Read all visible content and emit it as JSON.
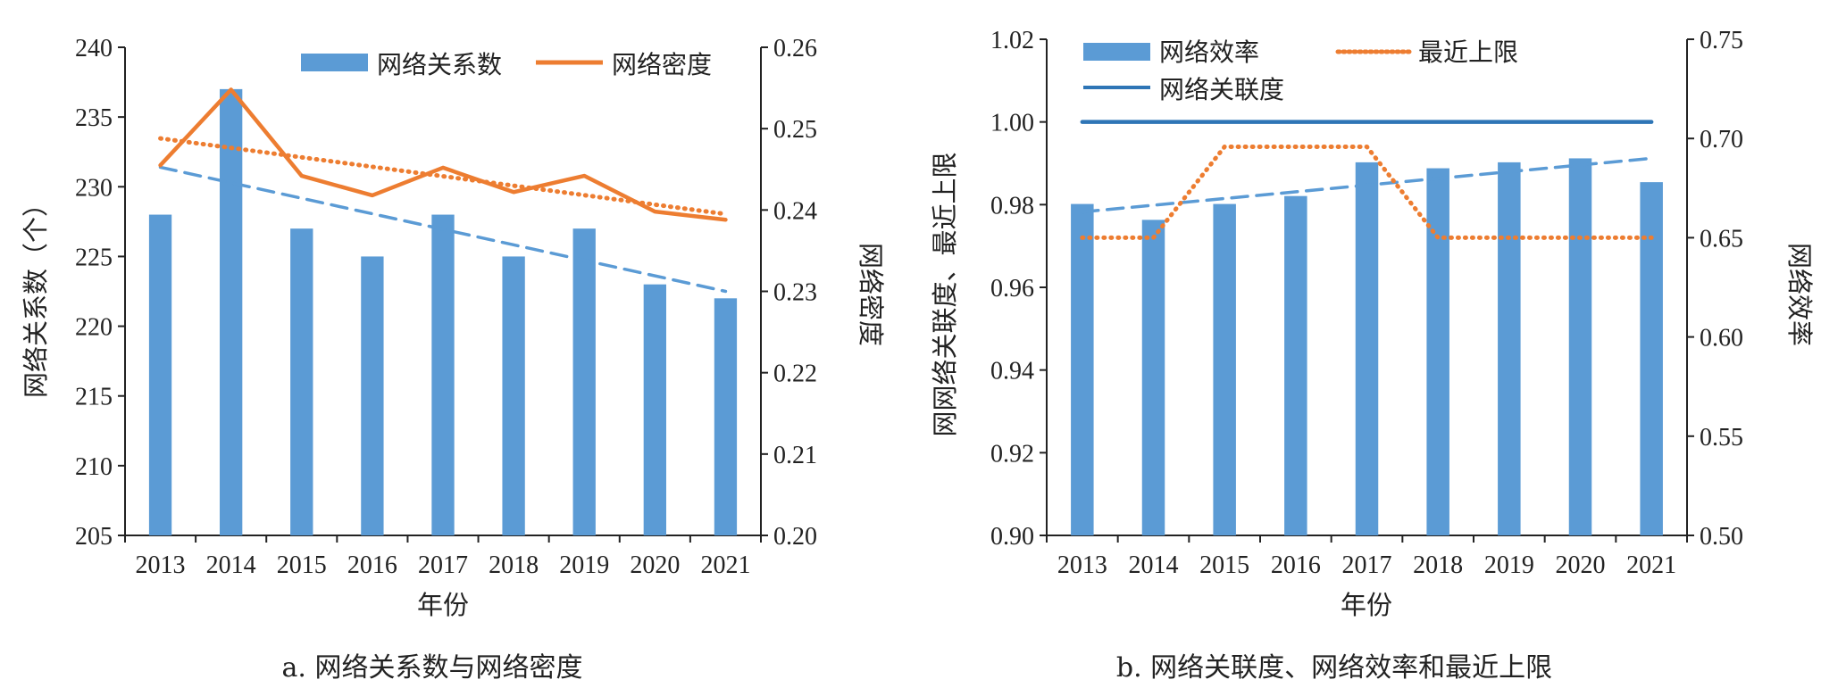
{
  "chart_data": [
    {
      "type": "bar",
      "caption": "a. 网络关系数与网络密度",
      "xlabel": "年份",
      "ylabel": "网络关系数（个）",
      "y2label": "网络密度",
      "categories": [
        "2013",
        "2014",
        "2015",
        "2016",
        "2017",
        "2018",
        "2019",
        "2020",
        "2021"
      ],
      "ylim": [
        205,
        240
      ],
      "yticks": [
        "205",
        "210",
        "215",
        "220",
        "225",
        "230",
        "235",
        "240"
      ],
      "y2lim": [
        0.2,
        0.26
      ],
      "y2ticks": [
        "0.20",
        "0.21",
        "0.22",
        "0.23",
        "0.24",
        "0.25",
        "0.26"
      ],
      "legend_position": "top",
      "series": [
        {
          "name": "网络关系数",
          "kind": "bar",
          "axis": "left",
          "color": "#5b9bd5",
          "values": [
            228,
            237,
            227,
            225,
            228,
            225,
            227,
            223,
            222
          ]
        },
        {
          "name": "网络密度",
          "kind": "line",
          "axis": "right",
          "color": "#ed7d31",
          "values": [
            0.2455,
            0.2548,
            0.2442,
            0.2418,
            0.2452,
            0.2422,
            0.2442,
            0.2398,
            0.2388
          ]
        }
      ],
      "trendlines": [
        {
          "of": "网络关系数",
          "axis": "left",
          "style": "dashed",
          "color": "#5b9bd5",
          "start": 231.4,
          "end": 222.5
        },
        {
          "of": "网络密度",
          "axis": "right",
          "style": "dotted",
          "color": "#ed7d31",
          "start": 0.2488,
          "end": 0.2395
        }
      ]
    },
    {
      "type": "bar",
      "caption": "b. 网络关联度、网络效率和最近上限",
      "xlabel": "年份",
      "ylabel": "网网络关联度、最近上限",
      "y2label": "网络效率",
      "categories": [
        "2013",
        "2014",
        "2015",
        "2016",
        "2017",
        "2018",
        "2019",
        "2020",
        "2021"
      ],
      "ylim": [
        0.9,
        1.02
      ],
      "yticks": [
        "0.90",
        "0.92",
        "0.94",
        "0.96",
        "0.98",
        "1.00",
        "1.02"
      ],
      "y2lim": [
        0.5,
        0.75
      ],
      "y2ticks": [
        "0.50",
        "0.55",
        "0.60",
        "0.65",
        "0.70",
        "0.75"
      ],
      "legend_position": "top",
      "series": [
        {
          "name": "网络效率",
          "kind": "bar",
          "axis": "right",
          "color": "#5b9bd5",
          "values": [
            0.667,
            0.659,
            0.667,
            0.671,
            0.688,
            0.685,
            0.688,
            0.69,
            0.678
          ]
        },
        {
          "name": "最近上限",
          "kind": "line",
          "style": "dotted",
          "axis": "left",
          "color": "#ed7d31",
          "values": [
            0.972,
            0.972,
            0.994,
            0.994,
            0.994,
            0.972,
            0.972,
            0.972,
            0.972
          ]
        },
        {
          "name": "网络关联度",
          "kind": "line",
          "axis": "left",
          "color": "#2e75b6",
          "values": [
            1.0,
            1.0,
            1.0,
            1.0,
            1.0,
            1.0,
            1.0,
            1.0,
            1.0
          ]
        }
      ],
      "trendlines": [
        {
          "of": "网络效率",
          "axis": "right",
          "style": "dashed",
          "color": "#5b9bd5",
          "start": 0.663,
          "end": 0.69
        }
      ]
    }
  ]
}
